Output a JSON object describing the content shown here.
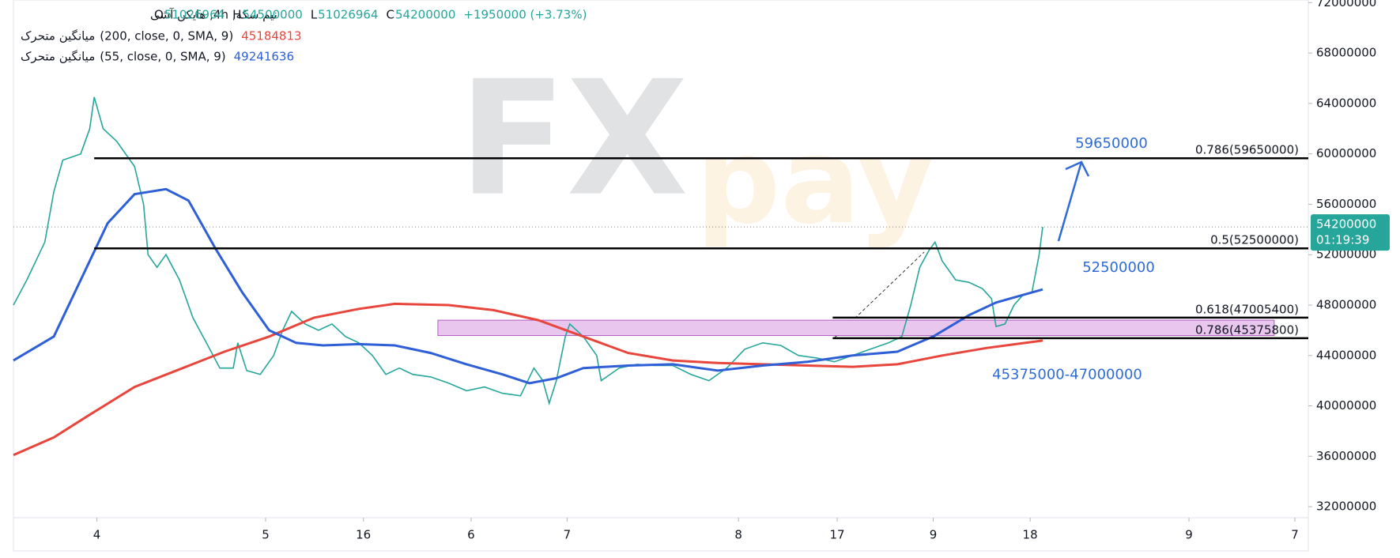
{
  "chart_data": {
    "type": "line",
    "instrument": "نیم سکه, 4h, هایکن آشی",
    "ohlc": [
      {
        "label": "O",
        "value": 51026964
      },
      {
        "label": "H",
        "value": 54500000
      },
      {
        "label": "L",
        "value": 51026964
      },
      {
        "label": "C",
        "value": 54200000
      }
    ],
    "change": {
      "value": 1950000,
      "label": "+1950000 (+3.73%)"
    },
    "watermark": [
      "FX",
      "pay"
    ],
    "xlim": [
      0,
      1443
    ],
    "ylim": [
      29370000,
      72210000
    ],
    "xticks": [
      {
        "value": 93,
        "label": "4"
      },
      {
        "value": 281,
        "label": "5"
      },
      {
        "value": 390,
        "label": "16"
      },
      {
        "value": 510,
        "label": "6"
      },
      {
        "value": 617,
        "label": "7"
      },
      {
        "value": 808,
        "label": "8"
      },
      {
        "value": 918,
        "label": "17"
      },
      {
        "value": 1025,
        "label": "9"
      },
      {
        "value": 1133,
        "label": "18"
      },
      {
        "value": 1310,
        "label": "9"
      },
      {
        "value": 1428,
        "label": "7"
      }
    ],
    "yticks": [
      32000000,
      36000000,
      40000000,
      44000000,
      48000000,
      52000000,
      56000000,
      60000000,
      64000000,
      68000000,
      72000000
    ],
    "grid": false,
    "series": [
      {
        "color": "#26a69a",
        "x": [
          0,
          15,
          35,
          45,
          55,
          75,
          85,
          90,
          100,
          115,
          135,
          145,
          150,
          160,
          170,
          185,
          200,
          215,
          230,
          245,
          250,
          260,
          275,
          290,
          300,
          310,
          325,
          340,
          355,
          370,
          385,
          400,
          415,
          430,
          445,
          465,
          485,
          505,
          525,
          545,
          565,
          580,
          590,
          597,
          605,
          615,
          620,
          635,
          650,
          655,
          675,
          695,
          715,
          735,
          755,
          775,
          795,
          815,
          835,
          855,
          875,
          895,
          915,
          935,
          955,
          975,
          990,
          1000,
          1010,
          1020,
          1027,
          1035,
          1050,
          1065,
          1080,
          1090,
          1095,
          1105,
          1115,
          1125,
          1135,
          1143,
          1147
        ],
        "values": [
          48000000,
          50000000,
          53000000,
          57000000,
          59500000,
          60000000,
          62000000,
          64500000,
          62000000,
          61000000,
          59000000,
          56000000,
          52000000,
          51000000,
          52000000,
          50000000,
          47000000,
          45000000,
          43000000,
          43000000,
          45000000,
          42800000,
          42500000,
          44000000,
          46000000,
          47500000,
          46500000,
          46000000,
          46500000,
          45500000,
          45000000,
          44000000,
          42500000,
          43000000,
          42500000,
          42300000,
          41800000,
          41200000,
          41500000,
          41000000,
          40800000,
          43000000,
          42000000,
          40200000,
          42000000,
          45500000,
          46500000,
          45500000,
          44000000,
          42000000,
          43000000,
          43300000,
          43200000,
          43200000,
          42500000,
          42000000,
          43000000,
          44500000,
          45000000,
          44800000,
          44000000,
          43800000,
          43500000,
          44000000,
          44500000,
          45000000,
          45500000,
          48000000,
          51000000,
          52300000,
          53000000,
          51500000,
          50000000,
          49800000,
          49300000,
          48500000,
          46300000,
          46500000,
          48000000,
          48800000,
          49000000,
          52000000,
          54200000
        ]
      },
      {
        "name": "میانگین متحرک",
        "params": "(200, close, 0, SMA, 9)",
        "last_value": 45184813,
        "color": "#e8453c",
        "x": [
          0,
          45,
          85,
          135,
          185,
          235,
          285,
          335,
          385,
          425,
          485,
          535,
          585,
          635,
          685,
          735,
          785,
          885,
          935,
          985,
          1035,
          1085,
          1147
        ],
        "values": [
          36100000,
          37500000,
          39300000,
          41500000,
          42900000,
          44300000,
          45500000,
          47000000,
          47700000,
          48100000,
          48000000,
          47600000,
          46800000,
          45500000,
          44200000,
          43600000,
          43400000,
          43200000,
          43100000,
          43300000,
          44000000,
          44600000,
          45184813
        ]
      },
      {
        "name": "میانگین متحرک",
        "params": "(55, close, 0, SMA, 9)",
        "last_value": 49241636,
        "color": "#2e5fd6",
        "x": [
          0,
          45,
          65,
          85,
          105,
          135,
          170,
          195,
          225,
          255,
          285,
          315,
          345,
          385,
          425,
          465,
          505,
          545,
          575,
          605,
          635,
          685,
          735,
          785,
          835,
          885,
          935,
          985,
          1025,
          1065,
          1095,
          1125,
          1147
        ],
        "values": [
          43600000,
          45500000,
          48500000,
          51500000,
          54500000,
          56800000,
          57200000,
          56300000,
          52500000,
          49000000,
          46000000,
          45000000,
          44800000,
          44900000,
          44800000,
          44200000,
          43300000,
          42500000,
          41800000,
          42200000,
          43000000,
          43200000,
          43300000,
          42800000,
          43200000,
          43500000,
          44000000,
          44300000,
          45500000,
          47200000,
          48200000,
          48800000,
          49241636
        ]
      }
    ],
    "levels": [
      {
        "value": 59650000,
        "label": "0.786(59650000)",
        "from": 90
      },
      {
        "value": 52500000,
        "label": "0.5(52500000)",
        "from": 90
      },
      {
        "value": 47005400,
        "label": "0.618(47005400)",
        "from": 913
      },
      {
        "value": 45375800,
        "label": "0.786(45375800)",
        "from": 913
      }
    ],
    "zone": {
      "low": 45580000,
      "high": 46800000,
      "from": 473,
      "to": 1405
    },
    "targets": [
      59650000,
      52500000
    ],
    "zone_label": "45375000-47000000",
    "last_price": 54200000,
    "countdown": "01:19:39"
  }
}
